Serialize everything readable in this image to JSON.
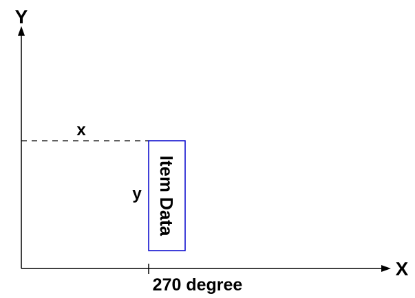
{
  "diagram": {
    "y_axis_label": "Y",
    "x_axis_label": "X",
    "x_offset_label": "x",
    "y_offset_label": "y",
    "item_label": "Item Data",
    "rotation_caption": "270 degree",
    "colors": {
      "axes": "#000000",
      "item_box": "#0000cc",
      "guide": "#000000"
    }
  }
}
